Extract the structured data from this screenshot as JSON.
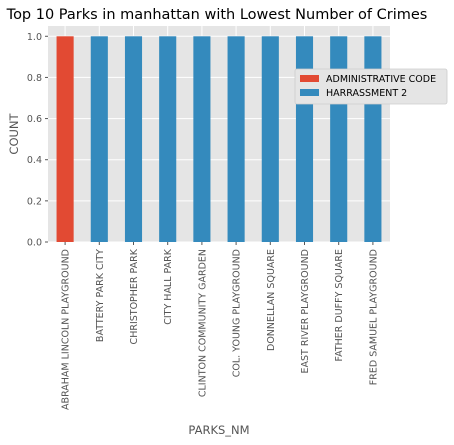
{
  "chart_data": {
    "type": "bar",
    "title": "Top 10 Parks in manhattan with Lowest Number of Crimes",
    "xlabel": "PARKS_NM",
    "ylabel": "COUNT",
    "ylim": [
      0,
      1.05
    ],
    "yticks": [
      "0.0",
      "0.2",
      "0.4",
      "0.6",
      "0.8",
      "1.0"
    ],
    "categories": [
      "ABRAHAM LINCOLN PLAYGROUND",
      "BATTERY PARK CITY",
      "CHRISTOPHER PARK",
      "CITY HALL PARK",
      "CLINTON COMMUNITY GARDEN",
      "COL. YOUNG PLAYGROUND",
      "DONNELLAN SQUARE",
      "EAST RIVER PLAYGROUND",
      "FATHER DUFFY SQUARE",
      "FRED SAMUEL PLAYGROUND"
    ],
    "series": [
      {
        "name": "ADMINISTRATIVE CODE",
        "color": "#E24A33",
        "values": [
          1,
          0,
          0,
          0,
          0,
          0,
          0,
          0,
          0,
          0
        ]
      },
      {
        "name": "HARRASSMENT 2",
        "color": "#348ABD",
        "values": [
          0,
          1,
          1,
          1,
          1,
          1,
          1,
          1,
          1,
          1
        ]
      }
    ],
    "stacked": true,
    "grid": true,
    "legend_position": "right"
  }
}
